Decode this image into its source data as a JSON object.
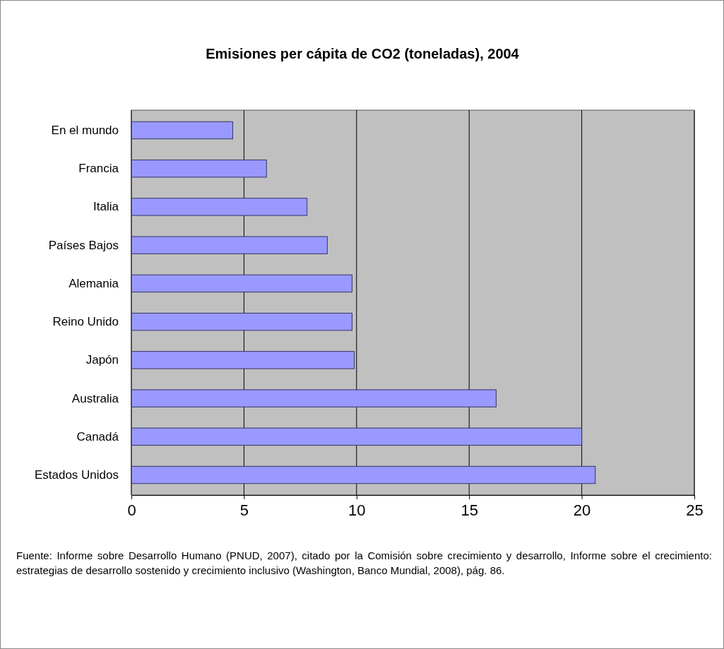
{
  "chart_data": {
    "type": "bar",
    "orientation": "horizontal",
    "title": "Emisiones per cápita de CO2 (toneladas), 2004",
    "categories": [
      "En el mundo",
      "Francia",
      "Italia",
      "Países Bajos",
      "Alemania",
      "Reino Unido",
      "Japón",
      "Australia",
      "Canadá",
      "Estados Unidos"
    ],
    "values": [
      4.5,
      6.0,
      7.8,
      8.7,
      9.8,
      9.8,
      9.9,
      16.2,
      20.0,
      20.6
    ],
    "color": "#9999ff",
    "xlim": [
      0,
      25
    ],
    "xticks": [
      0,
      5,
      10,
      15,
      20,
      25
    ],
    "grid": "x",
    "annotations": [
      "Fuente: Informe sobre Desarrollo Humano (PNUD, 2007), citado por la Comisión sobre crecimiento y desarrollo, Informe sobre el crecimiento: estrategias de desarrollo sostenido y crecimiento inclusivo (Washington, Banco Mundial, 2008), pág. 86."
    ]
  }
}
